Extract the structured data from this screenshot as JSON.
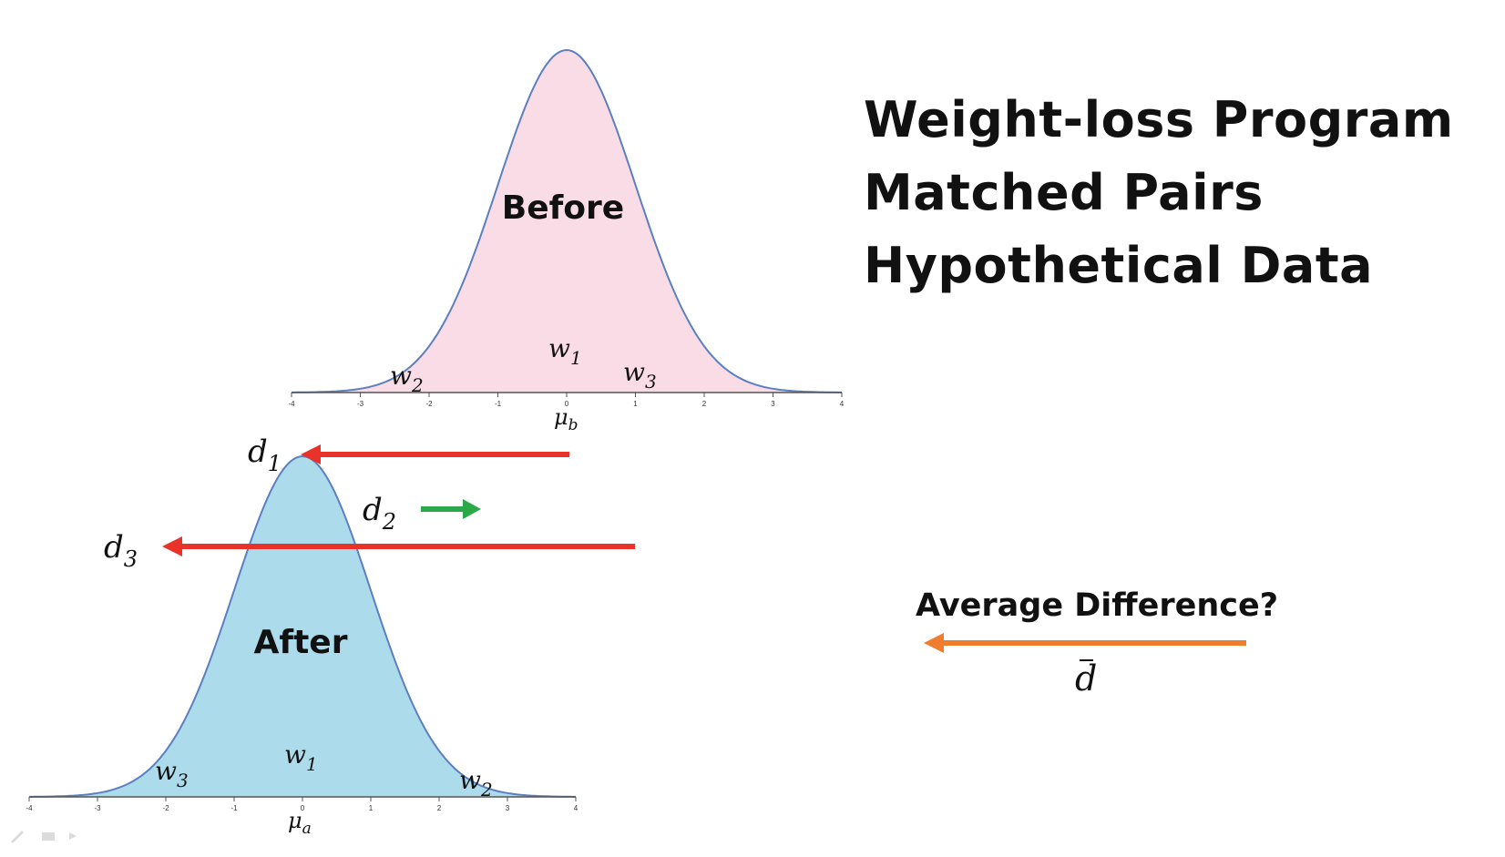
{
  "title_lines": [
    "Weight-loss Program",
    "Matched Pairs",
    "Hypothetical Data"
  ],
  "average_label": "Average Difference?",
  "dbar_symbol": "d",
  "before_curve": {
    "label": "Before",
    "mean_symbol": "μ",
    "mean_subscript": "b",
    "tick_labels": [
      "-4",
      "-3",
      "-2",
      "-1",
      "0",
      "1",
      "2",
      "3",
      "4"
    ],
    "fill_color": "#f9dce5",
    "line_color": "#5b7fbf",
    "points": [
      {
        "base": "w",
        "sub": "1"
      },
      {
        "base": "w",
        "sub": "2"
      },
      {
        "base": "w",
        "sub": "3"
      }
    ]
  },
  "after_curve": {
    "label": "After",
    "mean_symbol": "μ",
    "mean_subscript": "a",
    "tick_labels": [
      "-4",
      "-3",
      "-2",
      "-1",
      "0",
      "1",
      "2",
      "3",
      "4"
    ],
    "fill_color": "#acdcec",
    "line_color": "#5b7fbf",
    "points": [
      {
        "base": "w",
        "sub": "1"
      },
      {
        "base": "w",
        "sub": "2"
      },
      {
        "base": "w",
        "sub": "3"
      }
    ]
  },
  "differences": [
    {
      "base": "d",
      "sub": "1",
      "color": "#e8322a"
    },
    {
      "base": "d",
      "sub": "2",
      "color": "#2aa84a"
    },
    {
      "base": "d",
      "sub": "3",
      "color": "#e8322a"
    }
  ],
  "average_arrow_color": "#f07c2e"
}
